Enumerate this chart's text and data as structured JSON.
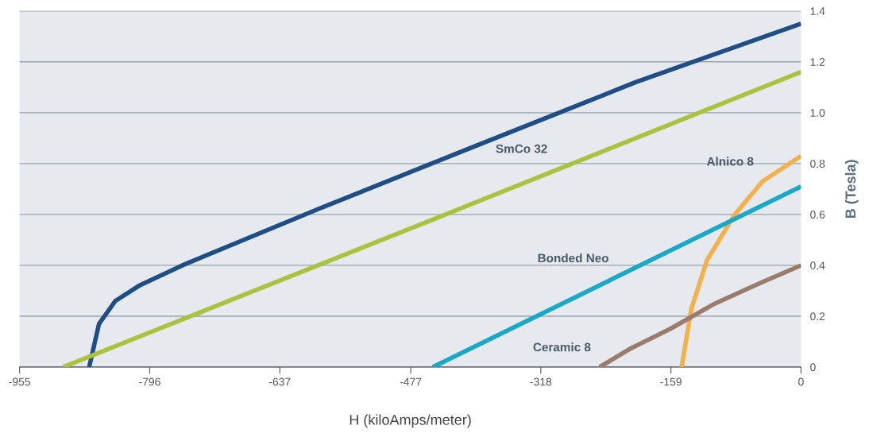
{
  "chart_data": {
    "type": "line",
    "xlabel": "H (kiloAmps/meter)",
    "ylabel": "B (Tesla)",
    "xlim": [
      -955,
      0
    ],
    "ylim": [
      0,
      1.4
    ],
    "xticks": [
      -955,
      -796,
      -637,
      -477,
      -318,
      -159,
      0
    ],
    "yticks": [
      0,
      0.2,
      0.4,
      0.6,
      0.8,
      {
        "value": 1.0,
        "label": "1.0"
      },
      1.2,
      1.4
    ],
    "grid": "y",
    "legend": false,
    "marker": "none",
    "line_style": "solid",
    "series": [
      {
        "color": "#1f4e86",
        "x": [
          -870,
          -858,
          -838,
          -809,
          -756,
          -591,
          -397,
          -202,
          0
        ],
        "values": [
          0,
          0.17,
          0.26,
          0.32,
          0.4,
          0.62,
          0.87,
          1.12,
          1.35
        ]
      },
      {
        "color": "#a9c23f",
        "x": [
          -902,
          -450,
          0
        ],
        "values": [
          0,
          0.58,
          1.16
        ]
      },
      {
        "color": "#f5b04c",
        "x": [
          -146,
          -134,
          -115,
          -81,
          -47,
          0
        ],
        "values": [
          0,
          0.23,
          0.42,
          0.6,
          0.73,
          0.83
        ]
      },
      {
        "color": "#1aa8c8",
        "x": [
          -450,
          -225,
          0
        ],
        "values": [
          0,
          0.355,
          0.71
        ]
      },
      {
        "color": "#9a7b6c",
        "x": [
          -246,
          -210,
          -160,
          -105,
          -50,
          0
        ],
        "values": [
          0,
          0.07,
          0.15,
          0.25,
          0.33,
          0.4
        ]
      }
    ],
    "annotations": [
      {
        "text": "SmCo 32",
        "x": -299,
        "y": 0.78
      },
      {
        "text": "Alnico 8",
        "x": -47,
        "y": 0.73
      },
      {
        "text": "Bonded Neo",
        "x": -224,
        "y": 0.35
      },
      {
        "text": "Ceramic 8",
        "x": -246,
        "y": 0
      }
    ]
  }
}
